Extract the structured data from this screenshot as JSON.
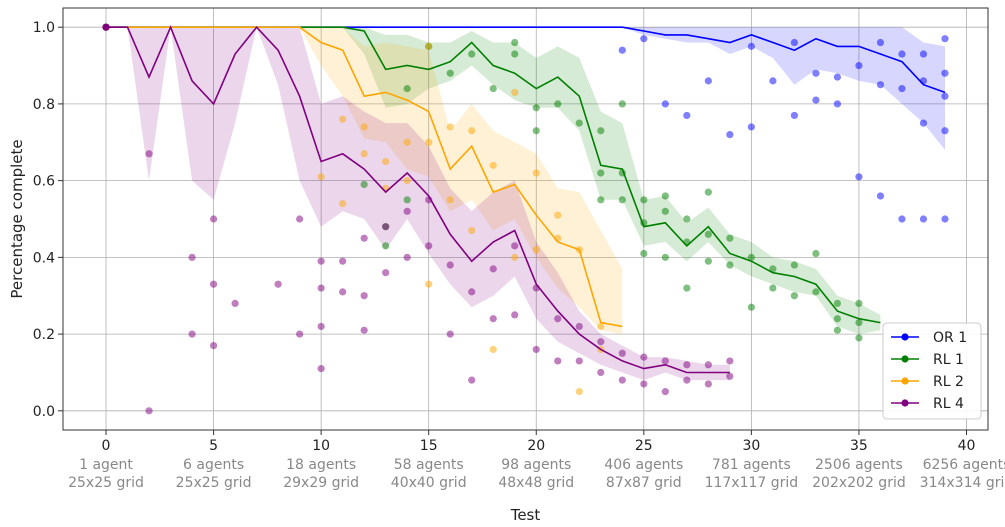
{
  "chart_data": {
    "type": "line",
    "title": "",
    "xlabel": "Test",
    "ylabel": "Percentage complete",
    "xlim": [
      -2,
      41
    ],
    "ylim": [
      -0.05,
      1.05
    ],
    "xticks": [
      0,
      5,
      10,
      15,
      20,
      25,
      30,
      35,
      40
    ],
    "yticks": [
      0.0,
      0.2,
      0.4,
      0.6,
      0.8,
      1.0
    ],
    "xtick_labels": [
      "0",
      "5",
      "10",
      "15",
      "20",
      "25",
      "30",
      "35",
      "40"
    ],
    "ytick_labels": [
      "0.0",
      "0.2",
      "0.4",
      "0.6",
      "0.8",
      "1.0"
    ],
    "grid": true,
    "legend_position": "bottom-right",
    "category_labels": [
      {
        "x": 0,
        "line1": "1 agent",
        "line2": "25x25 grid"
      },
      {
        "x": 5,
        "line1": "6 agents",
        "line2": "25x25 grid"
      },
      {
        "x": 10,
        "line1": "18 agents",
        "line2": "29x29 grid"
      },
      {
        "x": 15,
        "line1": "58 agents",
        "line2": "40x40 grid"
      },
      {
        "x": 20,
        "line1": "98 agents",
        "line2": "48x48 grid"
      },
      {
        "x": 25,
        "line1": "406 agents",
        "line2": "87x87 grid"
      },
      {
        "x": 30,
        "line1": "781 agents",
        "line2": "117x117 grid"
      },
      {
        "x": 35,
        "line1": "2506 agents",
        "line2": "202x202 grid"
      },
      {
        "x": 40,
        "line1": "6256 agents",
        "line2": "314x314 grid"
      }
    ],
    "series": [
      {
        "name": "OR 1",
        "color": "#0000ff",
        "x": [
          0,
          1,
          2,
          3,
          4,
          5,
          6,
          7,
          8,
          9,
          10,
          11,
          12,
          13,
          14,
          15,
          16,
          17,
          18,
          19,
          20,
          21,
          22,
          23,
          24,
          25,
          26,
          27,
          28,
          29,
          30,
          31,
          32,
          33,
          34,
          35,
          36,
          37,
          38,
          39
        ],
        "mean": [
          1,
          1,
          1,
          1,
          1,
          1,
          1,
          1,
          1,
          1,
          1,
          1,
          1,
          1,
          1,
          1,
          1,
          1,
          1,
          1,
          1,
          1,
          1,
          1,
          1,
          0.99,
          0.98,
          0.98,
          0.97,
          0.96,
          0.98,
          0.96,
          0.94,
          0.97,
          0.95,
          0.95,
          0.93,
          0.91,
          0.85,
          0.83
        ],
        "band_low": [
          1,
          1,
          1,
          1,
          1,
          1,
          1,
          1,
          1,
          1,
          1,
          1,
          1,
          1,
          1,
          1,
          1,
          1,
          1,
          1,
          1,
          1,
          1,
          1,
          1,
          0.98,
          0.97,
          0.96,
          0.96,
          0.93,
          0.95,
          0.92,
          0.85,
          0.89,
          0.88,
          0.86,
          0.85,
          0.8,
          0.75,
          0.68
        ],
        "band_high": [
          1,
          1,
          1,
          1,
          1,
          1,
          1,
          1,
          1,
          1,
          1,
          1,
          1,
          1,
          1,
          1,
          1,
          1,
          1,
          1,
          1,
          1,
          1,
          1,
          1,
          1,
          1,
          1,
          1,
          1,
          1,
          1,
          1,
          1,
          1,
          1,
          1,
          1,
          0.96,
          0.95
        ],
        "points": [
          [
            24,
            0.94
          ],
          [
            25,
            0.97
          ],
          [
            26,
            0.8
          ],
          [
            27,
            0.77
          ],
          [
            28,
            0.86
          ],
          [
            29,
            0.72
          ],
          [
            30,
            0.74
          ],
          [
            30,
            0.95
          ],
          [
            31,
            0.86
          ],
          [
            32,
            0.77
          ],
          [
            32,
            0.96
          ],
          [
            33,
            0.81
          ],
          [
            33,
            0.88
          ],
          [
            34,
            0.8
          ],
          [
            34,
            0.87
          ],
          [
            35,
            0.61
          ],
          [
            35,
            0.9
          ],
          [
            36,
            0.56
          ],
          [
            36,
            0.96
          ],
          [
            36,
            0.85
          ],
          [
            37,
            0.5
          ],
          [
            37,
            0.84
          ],
          [
            37,
            0.93
          ],
          [
            38,
            0.5
          ],
          [
            38,
            0.75
          ],
          [
            38,
            0.86
          ],
          [
            38,
            0.93
          ],
          [
            39,
            0.5
          ],
          [
            39,
            0.73
          ],
          [
            39,
            0.82
          ],
          [
            39,
            0.88
          ],
          [
            39,
            0.97
          ]
        ]
      },
      {
        "name": "RL 1",
        "color": "#008000",
        "x": [
          0,
          1,
          2,
          3,
          4,
          5,
          6,
          7,
          8,
          9,
          10,
          11,
          12,
          13,
          14,
          15,
          16,
          17,
          18,
          19,
          20,
          21,
          22,
          23,
          24,
          25,
          26,
          27,
          28,
          29,
          30,
          31,
          32,
          33,
          34,
          35,
          36
        ],
        "mean": [
          1,
          1,
          1,
          1,
          1,
          1,
          1,
          1,
          1,
          1,
          1,
          1,
          0.99,
          0.89,
          0.9,
          0.89,
          0.91,
          0.96,
          0.9,
          0.88,
          0.84,
          0.87,
          0.82,
          0.64,
          0.63,
          0.48,
          0.49,
          0.43,
          0.48,
          0.41,
          0.39,
          0.36,
          0.35,
          0.33,
          0.26,
          0.24,
          0.23
        ],
        "band_low": [
          1,
          1,
          1,
          1,
          1,
          1,
          1,
          1,
          1,
          1,
          1,
          1,
          0.93,
          0.79,
          0.8,
          0.84,
          0.86,
          0.9,
          0.85,
          0.81,
          0.79,
          0.79,
          0.73,
          0.55,
          0.55,
          0.43,
          0.44,
          0.39,
          0.44,
          0.38,
          0.35,
          0.33,
          0.31,
          0.3,
          0.22,
          0.2,
          0.21
        ],
        "band_high": [
          1,
          1,
          1,
          1,
          1,
          1,
          1,
          1,
          1,
          1,
          1,
          1,
          1,
          0.98,
          0.98,
          0.96,
          0.96,
          0.99,
          0.96,
          0.96,
          0.92,
          0.95,
          0.92,
          0.78,
          0.75,
          0.55,
          0.56,
          0.49,
          0.53,
          0.46,
          0.44,
          0.4,
          0.39,
          0.37,
          0.3,
          0.28,
          0.25
        ],
        "points": [
          [
            12,
            0.59
          ],
          [
            13,
            0.43
          ],
          [
            13,
            0.48
          ],
          [
            14,
            0.55
          ],
          [
            14,
            0.84
          ],
          [
            15,
            0.95
          ],
          [
            16,
            0.88
          ],
          [
            17,
            0.93
          ],
          [
            18,
            0.84
          ],
          [
            19,
            0.93
          ],
          [
            19,
            0.96
          ],
          [
            20,
            0.73
          ],
          [
            20,
            0.79
          ],
          [
            21,
            0.8
          ],
          [
            22,
            0.75
          ],
          [
            23,
            0.55
          ],
          [
            23,
            0.62
          ],
          [
            23,
            0.73
          ],
          [
            24,
            0.55
          ],
          [
            24,
            0.62
          ],
          [
            24,
            0.8
          ],
          [
            25,
            0.41
          ],
          [
            25,
            0.49
          ],
          [
            25,
            0.55
          ],
          [
            26,
            0.4
          ],
          [
            26,
            0.52
          ],
          [
            26,
            0.56
          ],
          [
            27,
            0.32
          ],
          [
            27,
            0.44
          ],
          [
            27,
            0.5
          ],
          [
            28,
            0.39
          ],
          [
            28,
            0.46
          ],
          [
            28,
            0.57
          ],
          [
            29,
            0.38
          ],
          [
            29,
            0.45
          ],
          [
            30,
            0.27
          ],
          [
            30,
            0.4
          ],
          [
            31,
            0.32
          ],
          [
            31,
            0.37
          ],
          [
            32,
            0.3
          ],
          [
            32,
            0.38
          ],
          [
            33,
            0.31
          ],
          [
            33,
            0.41
          ],
          [
            34,
            0.21
          ],
          [
            34,
            0.24
          ],
          [
            34,
            0.28
          ],
          [
            35,
            0.19
          ],
          [
            35,
            0.23
          ],
          [
            35,
            0.28
          ]
        ]
      },
      {
        "name": "RL 2",
        "color": "#ffa500",
        "x": [
          0,
          1,
          2,
          3,
          4,
          5,
          6,
          7,
          8,
          9,
          10,
          11,
          12,
          13,
          14,
          15,
          16,
          17,
          18,
          19,
          20,
          21,
          22,
          23,
          24
        ],
        "mean": [
          1,
          1,
          1,
          1,
          1,
          1,
          1,
          1,
          1,
          1,
          0.96,
          0.94,
          0.82,
          0.83,
          0.81,
          0.78,
          0.63,
          0.69,
          0.57,
          0.59,
          0.51,
          0.44,
          0.42,
          0.23,
          0.22
        ],
        "band_low": [
          1,
          1,
          1,
          1,
          1,
          1,
          1,
          1,
          1,
          1,
          0.9,
          0.82,
          0.71,
          0.7,
          0.63,
          0.61,
          0.52,
          0.55,
          0.47,
          0.5,
          0.4,
          0.32,
          0.27,
          0.21,
          0.2
        ],
        "band_high": [
          1,
          1,
          1,
          1,
          1,
          1,
          1,
          1,
          1,
          1,
          1,
          1,
          0.95,
          0.96,
          0.95,
          0.94,
          0.73,
          0.8,
          0.73,
          0.7,
          0.67,
          0.58,
          0.57,
          0.47,
          0.37
        ],
        "points": [
          [
            10,
            0.61
          ],
          [
            11,
            0.54
          ],
          [
            11,
            0.76
          ],
          [
            12,
            0.67
          ],
          [
            12,
            0.74
          ],
          [
            13,
            0.58
          ],
          [
            13,
            0.65
          ],
          [
            14,
            0.6
          ],
          [
            14,
            0.7
          ],
          [
            15,
            0.33
          ],
          [
            15,
            0.7
          ],
          [
            15,
            0.95
          ],
          [
            16,
            0.55
          ],
          [
            16,
            0.74
          ],
          [
            17,
            0.47
          ],
          [
            17,
            0.73
          ],
          [
            18,
            0.16
          ],
          [
            18,
            0.64
          ],
          [
            19,
            0.4
          ],
          [
            19,
            0.83
          ],
          [
            20,
            0.42
          ],
          [
            20,
            0.62
          ],
          [
            21,
            0.45
          ],
          [
            21,
            0.51
          ],
          [
            22,
            0.05
          ],
          [
            22,
            0.42
          ],
          [
            23,
            0.16
          ],
          [
            23,
            0.22
          ]
        ]
      },
      {
        "name": "RL 4",
        "color": "#800080",
        "x": [
          0,
          1,
          2,
          3,
          4,
          5,
          6,
          7,
          8,
          9,
          10,
          11,
          12,
          13,
          14,
          15,
          16,
          17,
          18,
          19,
          20,
          21,
          22,
          23,
          24,
          25,
          26,
          27,
          28,
          29
        ],
        "mean": [
          1,
          1,
          0.87,
          1,
          0.86,
          0.8,
          0.93,
          1,
          0.94,
          0.82,
          0.65,
          0.67,
          0.63,
          0.57,
          0.62,
          0.56,
          0.46,
          0.39,
          0.44,
          0.47,
          0.33,
          0.26,
          0.2,
          0.16,
          0.13,
          0.11,
          0.12,
          0.1,
          0.1,
          0.1
        ],
        "band_low": [
          1,
          1,
          0.6,
          1,
          0.6,
          0.55,
          0.75,
          1,
          0.85,
          0.6,
          0.48,
          0.52,
          0.5,
          0.42,
          0.5,
          0.41,
          0.33,
          0.27,
          0.3,
          0.35,
          0.24,
          0.18,
          0.15,
          0.12,
          0.1,
          0.08,
          0.1,
          0.08,
          0.08,
          0.08
        ],
        "band_high": [
          1,
          1,
          1,
          1,
          1,
          1,
          1,
          1,
          1,
          1,
          0.8,
          0.82,
          0.78,
          0.75,
          0.75,
          0.69,
          0.58,
          0.52,
          0.57,
          0.6,
          0.44,
          0.36,
          0.26,
          0.2,
          0.17,
          0.14,
          0.14,
          0.13,
          0.12,
          0.12
        ],
        "points": [
          [
            2,
            0.0
          ],
          [
            2,
            0.67
          ],
          [
            4,
            0.2
          ],
          [
            4,
            0.4
          ],
          [
            5,
            0.17
          ],
          [
            5,
            0.33
          ],
          [
            5,
            0.5
          ],
          [
            6,
            0.28
          ],
          [
            8,
            0.33
          ],
          [
            9,
            0.2
          ],
          [
            9,
            0.5
          ],
          [
            10,
            0.11
          ],
          [
            10,
            0.22
          ],
          [
            10,
            0.32
          ],
          [
            10,
            0.39
          ],
          [
            11,
            0.31
          ],
          [
            11,
            0.39
          ],
          [
            12,
            0.21
          ],
          [
            12,
            0.3
          ],
          [
            12,
            0.45
          ],
          [
            13,
            0.36
          ],
          [
            13,
            0.48
          ],
          [
            14,
            0.4
          ],
          [
            14,
            0.52
          ],
          [
            15,
            0.43
          ],
          [
            15,
            0.55
          ],
          [
            16,
            0.2
          ],
          [
            16,
            0.38
          ],
          [
            17,
            0.08
          ],
          [
            17,
            0.31
          ],
          [
            18,
            0.24
          ],
          [
            18,
            0.37
          ],
          [
            19,
            0.25
          ],
          [
            19,
            0.43
          ],
          [
            20,
            0.16
          ],
          [
            20,
            0.32
          ],
          [
            21,
            0.13
          ],
          [
            21,
            0.24
          ],
          [
            22,
            0.13
          ],
          [
            22,
            0.22
          ],
          [
            23,
            0.1
          ],
          [
            23,
            0.18
          ],
          [
            24,
            0.08
          ],
          [
            24,
            0.15
          ],
          [
            25,
            0.07
          ],
          [
            25,
            0.14
          ],
          [
            26,
            0.05
          ],
          [
            26,
            0.13
          ],
          [
            27,
            0.08
          ],
          [
            27,
            0.12
          ],
          [
            28,
            0.07
          ],
          [
            28,
            0.12
          ],
          [
            29,
            0.09
          ],
          [
            29,
            0.13
          ]
        ]
      }
    ]
  }
}
